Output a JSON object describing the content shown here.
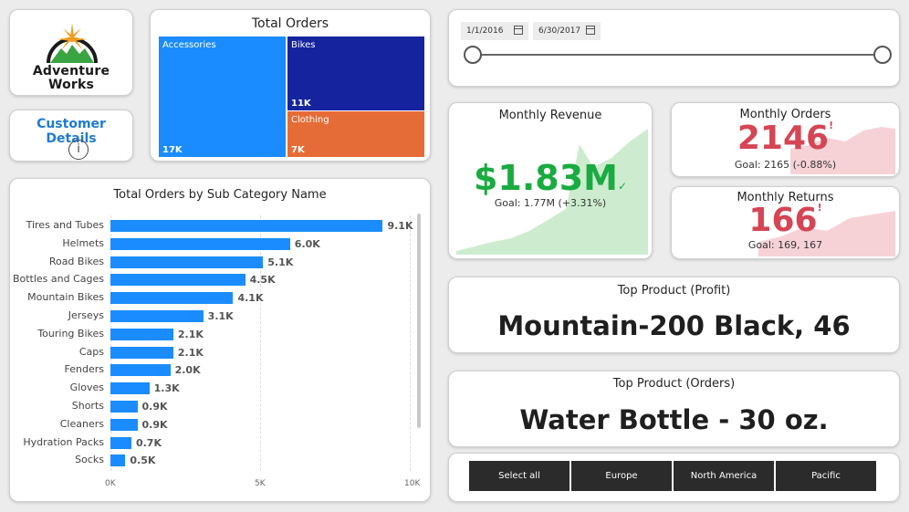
{
  "logo": {
    "line1": "Adventure",
    "line2": "Works"
  },
  "customer_details": {
    "label": "Customer Details",
    "icon": "info-icon"
  },
  "treemap": {
    "title": "Total Orders",
    "tiles": [
      {
        "name": "Accessories",
        "value": "17K",
        "color": "#1a8cff"
      },
      {
        "name": "Bikes",
        "value": "11K",
        "color": "#15249e"
      },
      {
        "name": "Clothing",
        "value": "7K",
        "color": "#e66c37"
      }
    ]
  },
  "chart_data": {
    "type": "bar",
    "orientation": "horizontal",
    "title": "Total Orders by Sub Category Name",
    "categories": [
      "Tires and Tubes",
      "Helmets",
      "Road Bikes",
      "Bottles and Cages",
      "Mountain Bikes",
      "Jerseys",
      "Touring Bikes",
      "Caps",
      "Fenders",
      "Gloves",
      "Shorts",
      "Cleaners",
      "Hydration Packs",
      "Socks"
    ],
    "values": [
      9.1,
      6.0,
      5.1,
      4.5,
      4.1,
      3.1,
      2.1,
      2.1,
      2.0,
      1.3,
      0.9,
      0.9,
      0.7,
      0.5
    ],
    "value_labels": [
      "9.1K",
      "6.0K",
      "5.1K",
      "4.5K",
      "4.1K",
      "3.1K",
      "2.1K",
      "2.1K",
      "2.0K",
      "1.3K",
      "0.9K",
      "0.9K",
      "0.7K",
      "0.5K"
    ],
    "xlim": [
      0,
      10
    ],
    "x_ticks": [
      "0K",
      "5K",
      "10K"
    ],
    "color": "#1a8cff"
  },
  "date_slicer": {
    "start": "1/1/2016",
    "end": "6/30/2017"
  },
  "monthly_revenue": {
    "title": "Monthly Revenue",
    "value": "$1.83M",
    "goal": "Goal: 1.77M (+3.31%)",
    "color": "#1aab40"
  },
  "monthly_orders": {
    "title": "Monthly Orders",
    "value": "2146",
    "goal": "Goal: 2165 (-0.88%)",
    "color": "#d64554"
  },
  "monthly_returns": {
    "title": "Monthly Returns",
    "value": "166",
    "goal": "Goal: 169, 167",
    "color": "#d64554"
  },
  "top_profit": {
    "title": "Top Product (Profit)",
    "value": "Mountain-200 Black, 46"
  },
  "top_orders": {
    "title": "Top Product (Orders)",
    "value": "Water Bottle - 30 oz."
  },
  "regions": [
    "Select all",
    "Europe",
    "North America",
    "Pacific"
  ]
}
